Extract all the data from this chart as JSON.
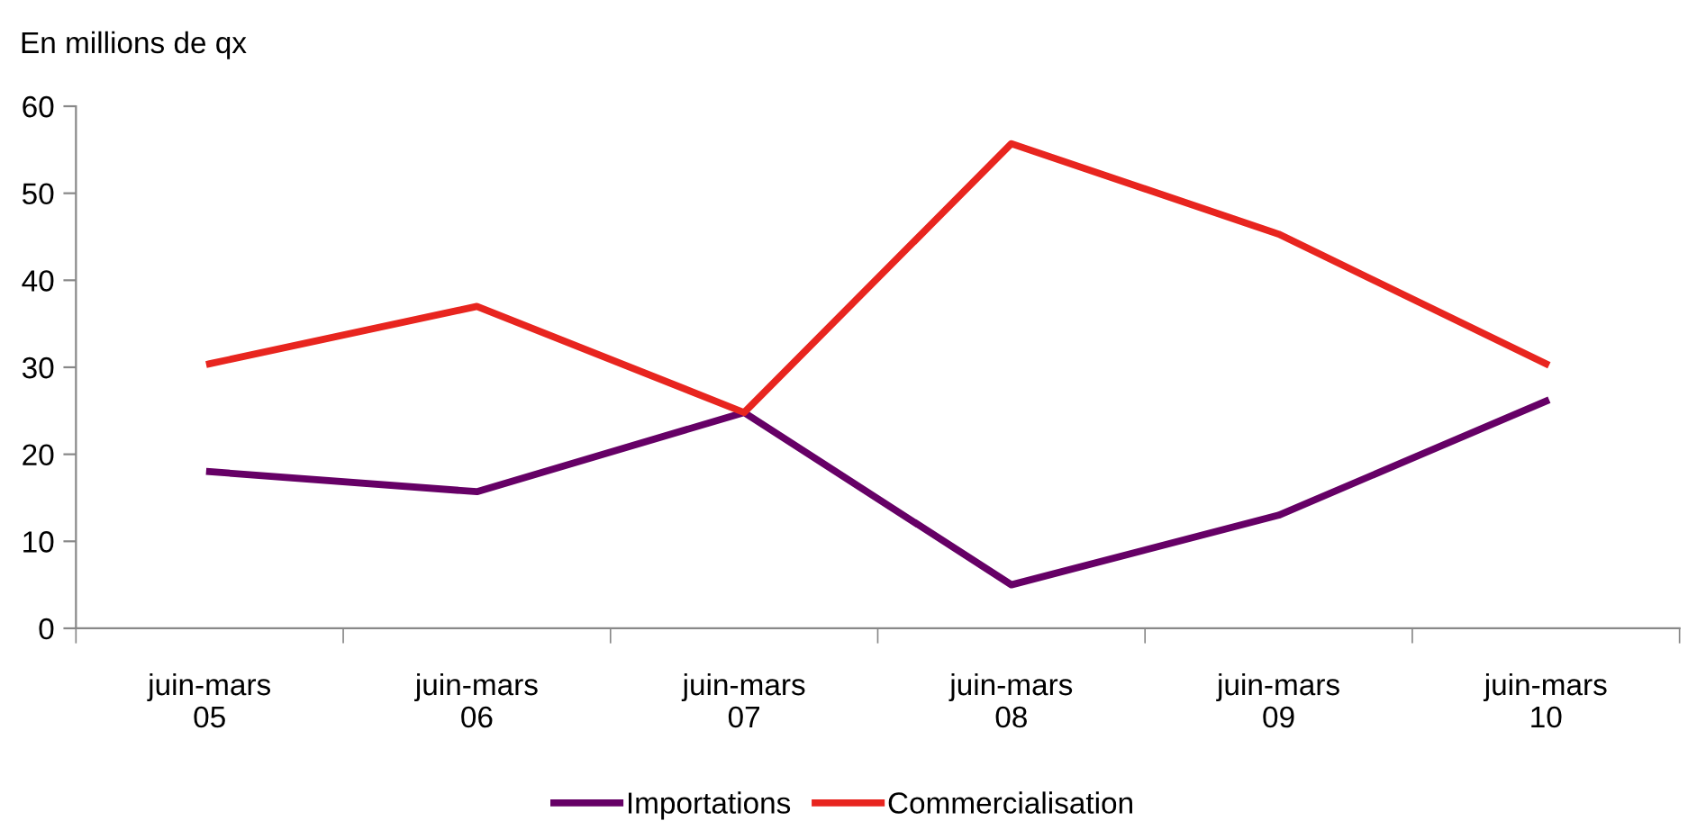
{
  "chart_data": {
    "type": "line",
    "ylabel": "En millions de qx",
    "categories": [
      "juin-mars\n05",
      "juin-mars\n06",
      "juin-mars\n07",
      "juin-mars\n08",
      "juin-mars\n09",
      "juin-mars\n10"
    ],
    "series": [
      {
        "name": "Importations",
        "color": "#660066",
        "values": [
          18.0,
          15.7,
          24.8,
          5.0,
          13.0,
          26.1
        ]
      },
      {
        "name": "Commercialisation",
        "color": "#e8251f",
        "values": [
          30.4,
          37.0,
          24.8,
          55.7,
          45.3,
          30.4
        ]
      }
    ],
    "ylim": [
      0,
      60
    ],
    "yticks": [
      0,
      10,
      20,
      30,
      40,
      50,
      60
    ],
    "grid": false,
    "legend": "bottom",
    "marker": "none",
    "line_style": "solid"
  }
}
